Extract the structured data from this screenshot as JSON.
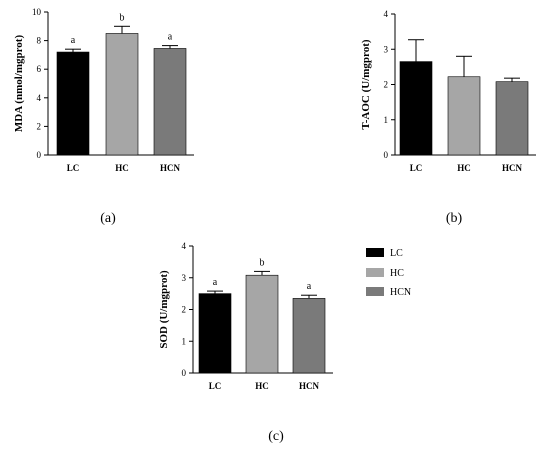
{
  "legend": {
    "items": [
      {
        "label": "LC",
        "color": "#000000"
      },
      {
        "label": "HC",
        "color": "#a6a6a6"
      },
      {
        "label": "HCN",
        "color": "#7a7a7a"
      }
    ]
  },
  "chart_data": [
    {
      "type": "bar",
      "panel_label": "(a)",
      "ylabel": "MDA (nmol/mgprot)",
      "categories": [
        "LC",
        "HC",
        "HCN"
      ],
      "values": [
        7.2,
        8.5,
        7.45
      ],
      "errors": [
        0.2,
        0.5,
        0.2
      ],
      "labels": [
        "a",
        "b",
        "a"
      ],
      "colors": [
        "#000000",
        "#a6a6a6",
        "#7a7a7a"
      ],
      "ylim": [
        0,
        10
      ],
      "yticks": [
        0,
        2,
        4,
        6,
        8,
        10
      ]
    },
    {
      "type": "bar",
      "panel_label": "(b)",
      "ylabel": "T-AOC (U/mgprot)",
      "categories": [
        "LC",
        "HC",
        "HCN"
      ],
      "values": [
        2.65,
        2.22,
        2.08
      ],
      "errors": [
        0.62,
        0.58,
        0.1
      ],
      "labels": [
        "",
        "",
        ""
      ],
      "colors": [
        "#000000",
        "#a6a6a6",
        "#7a7a7a"
      ],
      "ylim": [
        0,
        4
      ],
      "yticks": [
        0,
        1,
        2,
        3,
        4
      ]
    },
    {
      "type": "bar",
      "panel_label": "(c)",
      "ylabel": "SOD (U/mgprot)",
      "categories": [
        "LC",
        "HC",
        "HCN"
      ],
      "values": [
        2.5,
        3.08,
        2.35
      ],
      "errors": [
        0.08,
        0.12,
        0.1
      ],
      "labels": [
        "a",
        "b",
        "a"
      ],
      "colors": [
        "#000000",
        "#a6a6a6",
        "#7a7a7a"
      ],
      "ylim": [
        0,
        4
      ],
      "yticks": [
        0,
        1,
        2,
        3,
        4
      ]
    }
  ]
}
